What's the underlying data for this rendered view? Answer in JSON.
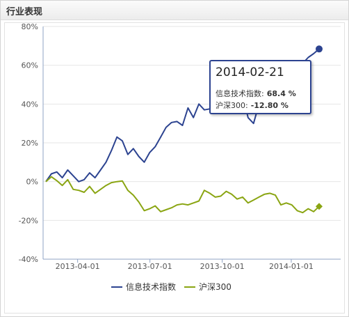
{
  "panel": {
    "title": "行业表现"
  },
  "colors": {
    "series1": "#2c4390",
    "series2": "#8aa512",
    "grid": "#e6e6e6",
    "axis": "#8fa3c4"
  },
  "tooltip": {
    "date": "2014-02-21",
    "row1_label": "信息技术指数:",
    "row1_value": "68.4 %",
    "row2_label": "沪深300:",
    "row2_value": "-12.80 %"
  },
  "legend": {
    "series1": "信息技术指数",
    "series2": "沪深300"
  },
  "chart_data": {
    "type": "line",
    "ylim": [
      -40,
      80
    ],
    "y_ticks": [
      80,
      60,
      40,
      20,
      0,
      -20,
      -40
    ],
    "y_tick_labels": [
      "80%",
      "60%",
      "40%",
      "20%",
      "0%",
      "-20%",
      "-40%"
    ],
    "x_ticks": [
      "2013-04-01",
      "2013-07-01",
      "2013-10-01",
      "2014-01-01"
    ],
    "x_tick_positions": [
      0.116,
      0.359,
      0.602,
      0.834
    ],
    "series": [
      {
        "name": "信息技术指数",
        "values": [
          {
            "x": 0.0,
            "y": 0
          },
          {
            "x": 0.02,
            "y": 4
          },
          {
            "x": 0.04,
            "y": 5
          },
          {
            "x": 0.06,
            "y": 2
          },
          {
            "x": 0.08,
            "y": 6
          },
          {
            "x": 0.1,
            "y": 3
          },
          {
            "x": 0.12,
            "y": 0
          },
          {
            "x": 0.14,
            "y": 1
          },
          {
            "x": 0.16,
            "y": 4.5
          },
          {
            "x": 0.18,
            "y": 2
          },
          {
            "x": 0.2,
            "y": 6
          },
          {
            "x": 0.22,
            "y": 10
          },
          {
            "x": 0.24,
            "y": 16
          },
          {
            "x": 0.26,
            "y": 23
          },
          {
            "x": 0.28,
            "y": 21
          },
          {
            "x": 0.3,
            "y": 14
          },
          {
            "x": 0.32,
            "y": 17
          },
          {
            "x": 0.34,
            "y": 13
          },
          {
            "x": 0.36,
            "y": 10
          },
          {
            "x": 0.38,
            "y": 15
          },
          {
            "x": 0.4,
            "y": 18
          },
          {
            "x": 0.42,
            "y": 23
          },
          {
            "x": 0.44,
            "y": 28
          },
          {
            "x": 0.46,
            "y": 30.5
          },
          {
            "x": 0.48,
            "y": 31
          },
          {
            "x": 0.5,
            "y": 29
          },
          {
            "x": 0.52,
            "y": 38
          },
          {
            "x": 0.54,
            "y": 33
          },
          {
            "x": 0.56,
            "y": 40
          },
          {
            "x": 0.58,
            "y": 37
          },
          {
            "x": 0.6,
            "y": 37.5
          },
          {
            "x": 0.62,
            "y": 42
          },
          {
            "x": 0.64,
            "y": 46
          },
          {
            "x": 0.66,
            "y": 48
          },
          {
            "x": 0.68,
            "y": 50
          },
          {
            "x": 0.7,
            "y": 47
          },
          {
            "x": 0.72,
            "y": 45
          },
          {
            "x": 0.74,
            "y": 33
          },
          {
            "x": 0.76,
            "y": 30
          },
          {
            "x": 0.78,
            "y": 40
          },
          {
            "x": 0.8,
            "y": 46
          },
          {
            "x": 0.82,
            "y": 41
          },
          {
            "x": 0.84,
            "y": 36
          },
          {
            "x": 0.86,
            "y": 45
          },
          {
            "x": 0.88,
            "y": 50
          },
          {
            "x": 0.9,
            "y": 56
          },
          {
            "x": 0.92,
            "y": 58
          },
          {
            "x": 0.94,
            "y": 61
          },
          {
            "x": 0.96,
            "y": 64
          },
          {
            "x": 0.98,
            "y": 66
          },
          {
            "x": 1.0,
            "y": 68.4
          }
        ]
      },
      {
        "name": "沪深300",
        "values": [
          {
            "x": 0.0,
            "y": 0
          },
          {
            "x": 0.02,
            "y": 2.5
          },
          {
            "x": 0.04,
            "y": 0.5
          },
          {
            "x": 0.06,
            "y": -2
          },
          {
            "x": 0.08,
            "y": 1
          },
          {
            "x": 0.1,
            "y": -4
          },
          {
            "x": 0.12,
            "y": -4.5
          },
          {
            "x": 0.14,
            "y": -5.5
          },
          {
            "x": 0.16,
            "y": -2.5
          },
          {
            "x": 0.18,
            "y": -6
          },
          {
            "x": 0.2,
            "y": -4
          },
          {
            "x": 0.22,
            "y": -2
          },
          {
            "x": 0.24,
            "y": -0.5
          },
          {
            "x": 0.26,
            "y": 0
          },
          {
            "x": 0.28,
            "y": 0.3
          },
          {
            "x": 0.3,
            "y": -4.5
          },
          {
            "x": 0.32,
            "y": -7
          },
          {
            "x": 0.34,
            "y": -10.5
          },
          {
            "x": 0.36,
            "y": -15
          },
          {
            "x": 0.38,
            "y": -14
          },
          {
            "x": 0.4,
            "y": -12.5
          },
          {
            "x": 0.42,
            "y": -15.5
          },
          {
            "x": 0.44,
            "y": -14.5
          },
          {
            "x": 0.46,
            "y": -13.5
          },
          {
            "x": 0.48,
            "y": -12
          },
          {
            "x": 0.5,
            "y": -11.5
          },
          {
            "x": 0.52,
            "y": -12
          },
          {
            "x": 0.54,
            "y": -11
          },
          {
            "x": 0.56,
            "y": -10
          },
          {
            "x": 0.58,
            "y": -4.5
          },
          {
            "x": 0.6,
            "y": -6
          },
          {
            "x": 0.62,
            "y": -8
          },
          {
            "x": 0.64,
            "y": -7.5
          },
          {
            "x": 0.66,
            "y": -5
          },
          {
            "x": 0.68,
            "y": -6.5
          },
          {
            "x": 0.7,
            "y": -9
          },
          {
            "x": 0.72,
            "y": -8
          },
          {
            "x": 0.74,
            "y": -11
          },
          {
            "x": 0.76,
            "y": -9.5
          },
          {
            "x": 0.78,
            "y": -8
          },
          {
            "x": 0.8,
            "y": -6.5
          },
          {
            "x": 0.82,
            "y": -6
          },
          {
            "x": 0.84,
            "y": -7
          },
          {
            "x": 0.86,
            "y": -12
          },
          {
            "x": 0.88,
            "y": -11
          },
          {
            "x": 0.9,
            "y": -12
          },
          {
            "x": 0.92,
            "y": -15
          },
          {
            "x": 0.94,
            "y": -16
          },
          {
            "x": 0.96,
            "y": -14
          },
          {
            "x": 0.98,
            "y": -15.5
          },
          {
            "x": 1.0,
            "y": -12.8
          }
        ]
      }
    ]
  }
}
